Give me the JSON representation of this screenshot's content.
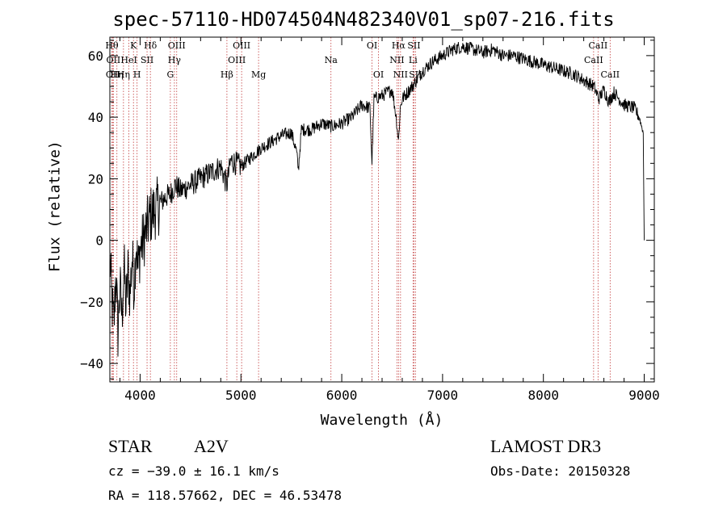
{
  "chart_data": {
    "type": "line",
    "title": "spec-57110-HD074504N482340V01_sp07-216.fits",
    "xlabel": "Wavelength (Å)",
    "ylabel": "Flux (relative)",
    "xlim": [
      3700,
      9100
    ],
    "ylim": [
      -46,
      66
    ],
    "xticks": [
      4000,
      5000,
      6000,
      7000,
      8000,
      9000
    ],
    "yticks": [
      -40,
      -20,
      0,
      20,
      40,
      60
    ],
    "series": [
      {
        "name": "flux",
        "x": [
          3700,
          3720,
          3740,
          3760,
          3780,
          3800,
          3820,
          3840,
          3860,
          3880,
          3900,
          3920,
          3940,
          3960,
          3980,
          4000,
          4050,
          4100,
          4150,
          4200,
          4250,
          4300,
          4350,
          4400,
          4500,
          4600,
          4700,
          4800,
          4860,
          4900,
          5000,
          5100,
          5200,
          5300,
          5400,
          5500,
          5550,
          5570,
          5600,
          5700,
          5800,
          5900,
          6000,
          6100,
          6200,
          6280,
          6300,
          6320,
          6400,
          6500,
          6540,
          6563,
          6580,
          6600,
          6700,
          6800,
          6900,
          7000,
          7100,
          7200,
          7300,
          7400,
          7500,
          7600,
          7700,
          7800,
          7900,
          8000,
          8100,
          8200,
          8300,
          8400,
          8500,
          8550,
          8600,
          8650,
          8700,
          8800,
          8900,
          8950,
          8990,
          9000
        ],
        "y": [
          -5,
          -20,
          -28,
          -10,
          -30,
          -15,
          -25,
          -8,
          -22,
          -10,
          -18,
          -5,
          -15,
          0,
          -10,
          -3,
          2,
          8,
          10,
          12,
          14,
          15,
          18,
          16,
          18,
          20,
          22,
          24,
          18,
          26,
          24,
          27,
          30,
          32,
          34,
          35,
          29,
          23,
          36,
          36,
          38,
          37,
          38,
          40,
          44,
          43,
          25,
          46,
          47,
          49,
          40,
          32,
          43,
          46,
          50,
          55,
          58,
          60,
          62,
          63,
          62,
          61,
          62,
          60,
          60,
          59,
          58,
          57,
          56,
          55,
          54,
          52,
          50,
          46,
          49,
          45,
          48,
          44,
          43,
          40,
          35,
          0
        ]
      }
    ],
    "lines": [
      {
        "x": 3720,
        "label": "Hθ",
        "row": 0
      },
      {
        "x": 3735,
        "label": "OII",
        "row": 1
      },
      {
        "x": 3730,
        "label": "OII",
        "row": 2
      },
      {
        "x": 3770,
        "label": "Hη",
        "row": 2
      },
      {
        "x": 3835,
        "label": "Hη",
        "row": 2
      },
      {
        "x": 3889,
        "label": "HeI",
        "row": 1
      },
      {
        "x": 3934,
        "label": "K",
        "row": 0
      },
      {
        "x": 3970,
        "label": "H",
        "row": 2
      },
      {
        "x": 4069,
        "label": "SII",
        "row": 1
      },
      {
        "x": 4102,
        "label": "Hδ",
        "row": 0
      },
      {
        "x": 4300,
        "label": "G",
        "row": 2
      },
      {
        "x": 4340,
        "label": "Hγ",
        "row": 1
      },
      {
        "x": 4363,
        "label": "OIII",
        "row": 0
      },
      {
        "x": 4861,
        "label": "Hβ",
        "row": 2
      },
      {
        "x": 4959,
        "label": "OIII",
        "row": 1
      },
      {
        "x": 5007,
        "label": "OIII",
        "row": 0
      },
      {
        "x": 5175,
        "label": "Mg",
        "row": 2
      },
      {
        "x": 5893,
        "label": "Na",
        "row": 1
      },
      {
        "x": 6300,
        "label": "OI",
        "row": 0
      },
      {
        "x": 6364,
        "label": "OI",
        "row": 2
      },
      {
        "x": 6548,
        "label": "NII",
        "row": 1
      },
      {
        "x": 6563,
        "label": "Hα",
        "row": 0
      },
      {
        "x": 6583,
        "label": "NII",
        "row": 2
      },
      {
        "x": 6707,
        "label": "Li",
        "row": 1
      },
      {
        "x": 6716,
        "label": "SII",
        "row": 0
      },
      {
        "x": 6731,
        "label": "SII",
        "row": 2
      },
      {
        "x": 8498,
        "label": "CaII",
        "row": 1
      },
      {
        "x": 8542,
        "label": "CaII",
        "row": 0
      },
      {
        "x": 8662,
        "label": "CaII",
        "row": 2
      }
    ]
  },
  "info": {
    "object_type": "STAR",
    "subclass": "A2V",
    "survey": "LAMOST DR3",
    "cz": "cz = −39.0 ± 16.1 km/s",
    "obs_date": "Obs-Date: 20150328",
    "radec": "RA = 118.57662, DEC =  46.53478"
  }
}
